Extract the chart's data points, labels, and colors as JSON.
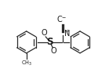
{
  "bg_color": "#ffffff",
  "line_color": "#2a2a2a",
  "text_color": "#1a1a1a",
  "figsize": [
    1.39,
    0.97
  ],
  "dpi": 100,
  "xlim": [
    0,
    10
  ],
  "ylim": [
    0,
    7.2
  ]
}
